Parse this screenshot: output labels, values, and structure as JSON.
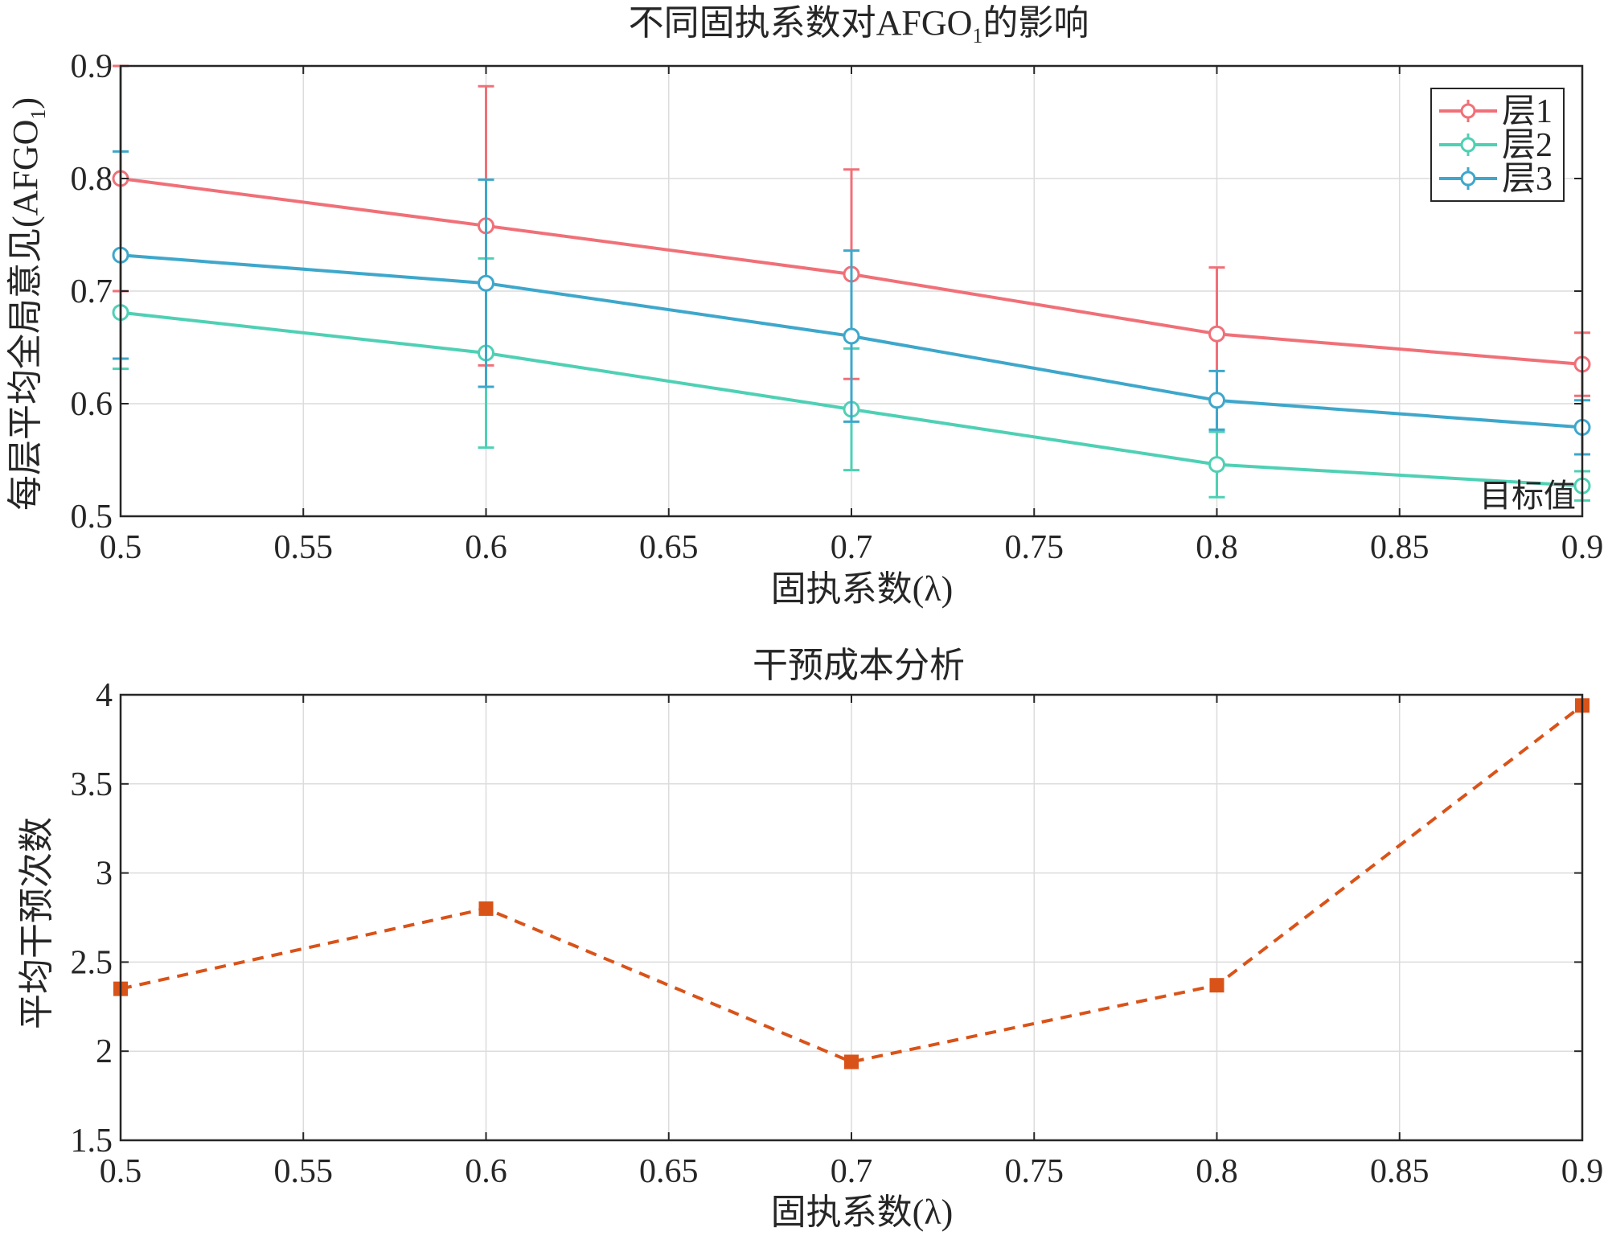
{
  "chart_data": [
    {
      "type": "line",
      "title": "不同固执系数对AFGO",
      "title_subscript": "1",
      "title_suffix": "的影响",
      "xlabel": "固执系数(λ)",
      "ylabel": "每层平均全局意见(AFGO",
      "ylabel_subscript": "1",
      "ylabel_suffix": ")",
      "x": [
        0.5,
        0.6,
        0.7,
        0.8,
        0.9
      ],
      "xlim": [
        0.5,
        0.9
      ],
      "ylim": [
        0.5,
        0.9
      ],
      "xticks": [
        "0.5",
        "0.55",
        "0.6",
        "0.65",
        "0.7",
        "0.75",
        "0.8",
        "0.85",
        "0.9"
      ],
      "yticks": [
        "0.5",
        "0.6",
        "0.7",
        "0.8",
        "0.9"
      ],
      "grid": true,
      "legend_position": "top-right",
      "series": [
        {
          "name": "层1",
          "color": "#f07078",
          "values": [
            0.8,
            0.758,
            0.715,
            0.662,
            0.635
          ],
          "err": [
            0.1,
            0.124,
            0.093,
            0.059,
            0.028
          ]
        },
        {
          "name": "层2",
          "color": "#4fd0b4",
          "values": [
            0.681,
            0.645,
            0.595,
            0.546,
            0.527
          ],
          "err": [
            0.05,
            0.084,
            0.054,
            0.029,
            0.013
          ]
        },
        {
          "name": "层3",
          "color": "#3ea7cb",
          "values": [
            0.732,
            0.707,
            0.66,
            0.603,
            0.579
          ],
          "err": [
            0.092,
            0.092,
            0.076,
            0.026,
            0.024
          ]
        }
      ],
      "annotations": [
        "目标值"
      ]
    },
    {
      "type": "line",
      "title": "干预成本分析",
      "xlabel": "固执系数(λ)",
      "ylabel": "平均干预次数",
      "x": [
        0.5,
        0.6,
        0.7,
        0.8,
        0.9
      ],
      "xlim": [
        0.5,
        0.9
      ],
      "ylim": [
        1.5,
        4
      ],
      "xticks": [
        "0.5",
        "0.55",
        "0.6",
        "0.65",
        "0.7",
        "0.75",
        "0.8",
        "0.85",
        "0.9"
      ],
      "yticks": [
        "1.5",
        "2",
        "2.5",
        "3",
        "3.5",
        "4"
      ],
      "grid": true,
      "series": [
        {
          "color": "#d95319",
          "line_style": "dashed",
          "marker": "square",
          "values": [
            2.35,
            2.8,
            1.94,
            2.37,
            3.94
          ]
        }
      ]
    }
  ]
}
